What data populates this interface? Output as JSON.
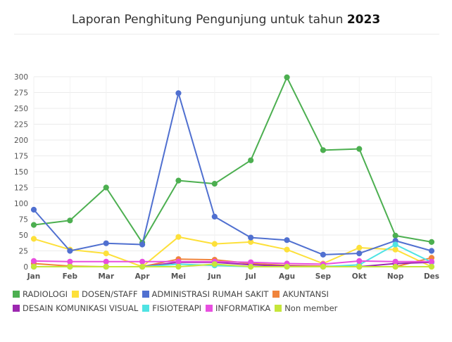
{
  "title": {
    "prefix": "Laporan Penghitung Pengunjung untuk tahun ",
    "year": "2023"
  },
  "chart_data": {
    "type": "line",
    "categories": [
      "Jan",
      "Feb",
      "Mar",
      "Apr",
      "Mei",
      "Jun",
      "Jul",
      "Agu",
      "Sep",
      "Okt",
      "Nop",
      "Des"
    ],
    "ylim": [
      0,
      300
    ],
    "yticks": [
      0,
      25,
      50,
      75,
      100,
      125,
      150,
      175,
      200,
      225,
      250,
      275,
      300
    ],
    "grid": true,
    "legend_position": "bottom",
    "series": [
      {
        "name": "RADIOLOGI",
        "color": "#4caf50",
        "values": [
          66,
          73,
          125,
          38,
          136,
          131,
          168,
          299,
          184,
          186,
          49,
          39
        ]
      },
      {
        "name": "DOSEN/STAFF",
        "color": "#fde03a",
        "values": [
          44,
          27,
          21,
          0,
          47,
          36,
          39,
          27,
          5,
          30,
          27,
          0
        ]
      },
      {
        "name": "ADMINISTRASI RUMAH SAKIT",
        "color": "#5070d0",
        "values": [
          90,
          25,
          37,
          35,
          274,
          79,
          46,
          42,
          19,
          21,
          41,
          25
        ]
      },
      {
        "name": "AKUNTANSI",
        "color": "#f0843c",
        "values": [
          5,
          1,
          0,
          0,
          12,
          11,
          5,
          2,
          1,
          0,
          0,
          14
        ]
      },
      {
        "name": "DESAIN KOMUNIKASI VISUAL",
        "color": "#9c27b0",
        "values": [
          0,
          0,
          0,
          0,
          7,
          7,
          3,
          1,
          0,
          0,
          5,
          7
        ]
      },
      {
        "name": "FISIOTERAPI",
        "color": "#4fe3e3",
        "values": [
          0,
          0,
          0,
          0,
          4,
          2,
          0,
          0,
          0,
          3,
          35,
          7
        ]
      },
      {
        "name": "INFORMATIKA",
        "color": "#e84fe0",
        "values": [
          9,
          8,
          8,
          8,
          8,
          8,
          7,
          5,
          4,
          9,
          8,
          8
        ]
      },
      {
        "name": "Non member",
        "color": "#c6e63a",
        "values": [
          0,
          0,
          0,
          0,
          0,
          4,
          0,
          0,
          0,
          0,
          0,
          0
        ]
      }
    ]
  }
}
